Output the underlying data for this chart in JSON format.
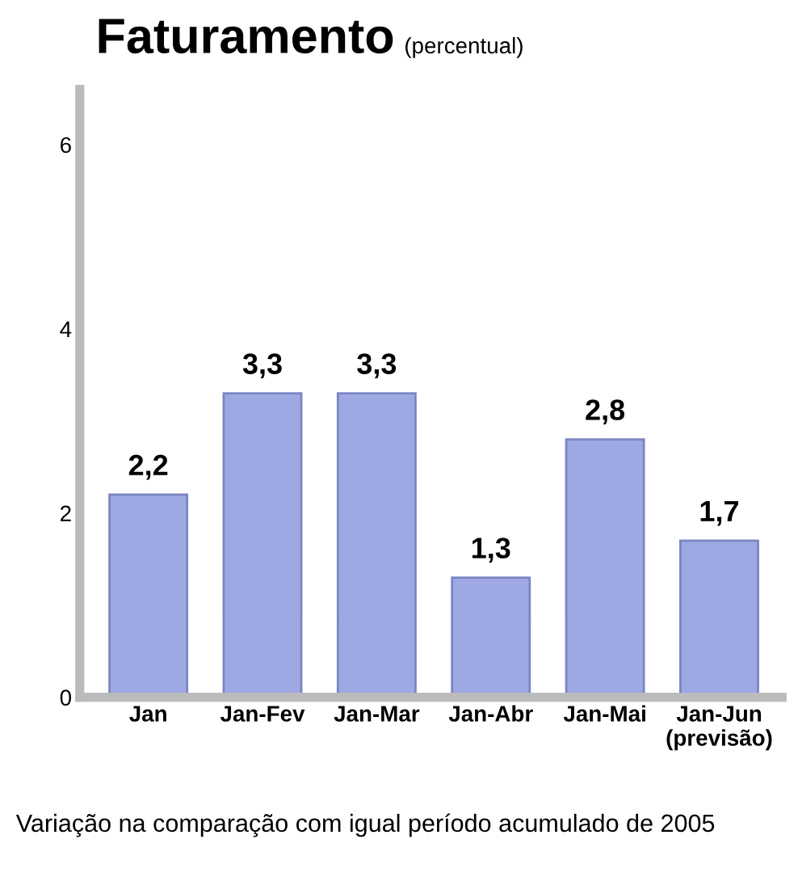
{
  "chart_data": {
    "type": "bar",
    "title": "Faturamento",
    "subtitle": "(percentual)",
    "categories": [
      "Jan",
      "Jan-Fev",
      "Jan-Mar",
      "Jan-Abr",
      "Jan-Mai",
      "Jan-Jun\n(previsão)"
    ],
    "values": [
      2.2,
      3.3,
      3.3,
      1.3,
      2.8,
      1.7
    ],
    "value_labels": [
      "2,2",
      "3,3",
      "3,3",
      "1,3",
      "2,8",
      "1,7"
    ],
    "color": "#9ea8e2",
    "ylim": [
      0,
      6.6
    ],
    "yticks": [
      0,
      2,
      4,
      6
    ],
    "grid": false,
    "legend": false,
    "annotations": [
      "Variação na comparação com igual período acumulado de 2005"
    ]
  }
}
